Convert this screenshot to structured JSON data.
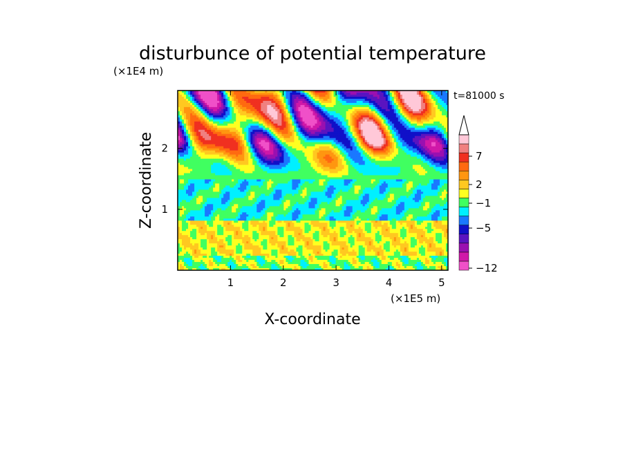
{
  "chart_data": {
    "type": "heatmap",
    "title": "disturbunce of potential temperature",
    "xlabel": "X-coordinate",
    "ylabel": "Z-coordinate",
    "x_unit": "(×1E5 m)",
    "y_unit": "(×1E4 m)",
    "time_label": "t=81000 s",
    "xlim": [
      0,
      5.12
    ],
    "ylim": [
      0,
      2.95
    ],
    "x_ticks": [
      "1",
      "2",
      "3",
      "4",
      "5"
    ],
    "y_ticks": [
      "1",
      "2"
    ],
    "colorbar": {
      "tick_labels": [
        "7",
        "2",
        "−1",
        "−5",
        "−12"
      ],
      "levels": [
        {
          "color": "#f050c8"
        },
        {
          "color": "#d018a8"
        },
        {
          "color": "#9a10b0"
        },
        {
          "color": "#5a14c0"
        },
        {
          "color": "#1010c8"
        },
        {
          "color": "#1a78ff"
        },
        {
          "color": "#00f0ff"
        },
        {
          "color": "#40ff60"
        },
        {
          "color": "#ffff20"
        },
        {
          "color": "#ffc820"
        },
        {
          "color": "#ff9610"
        },
        {
          "color": "#ff6a10"
        },
        {
          "color": "#f03020"
        },
        {
          "color": "#f08080"
        },
        {
          "color": "#ffc8d8"
        }
      ]
    },
    "bands": [
      {
        "z_range": [
          0.0,
          0.25
        ],
        "dominant": "yellow/green mix"
      },
      {
        "z_range": [
          0.25,
          0.75
        ],
        "dominant": "yellow with green patches"
      },
      {
        "z_range": [
          0.75,
          1.5
        ],
        "dominant": "cyan and green"
      },
      {
        "z_range": [
          1.5,
          2.95
        ],
        "dominant": "wave pattern: red/orange and blue/purple cells"
      }
    ]
  }
}
